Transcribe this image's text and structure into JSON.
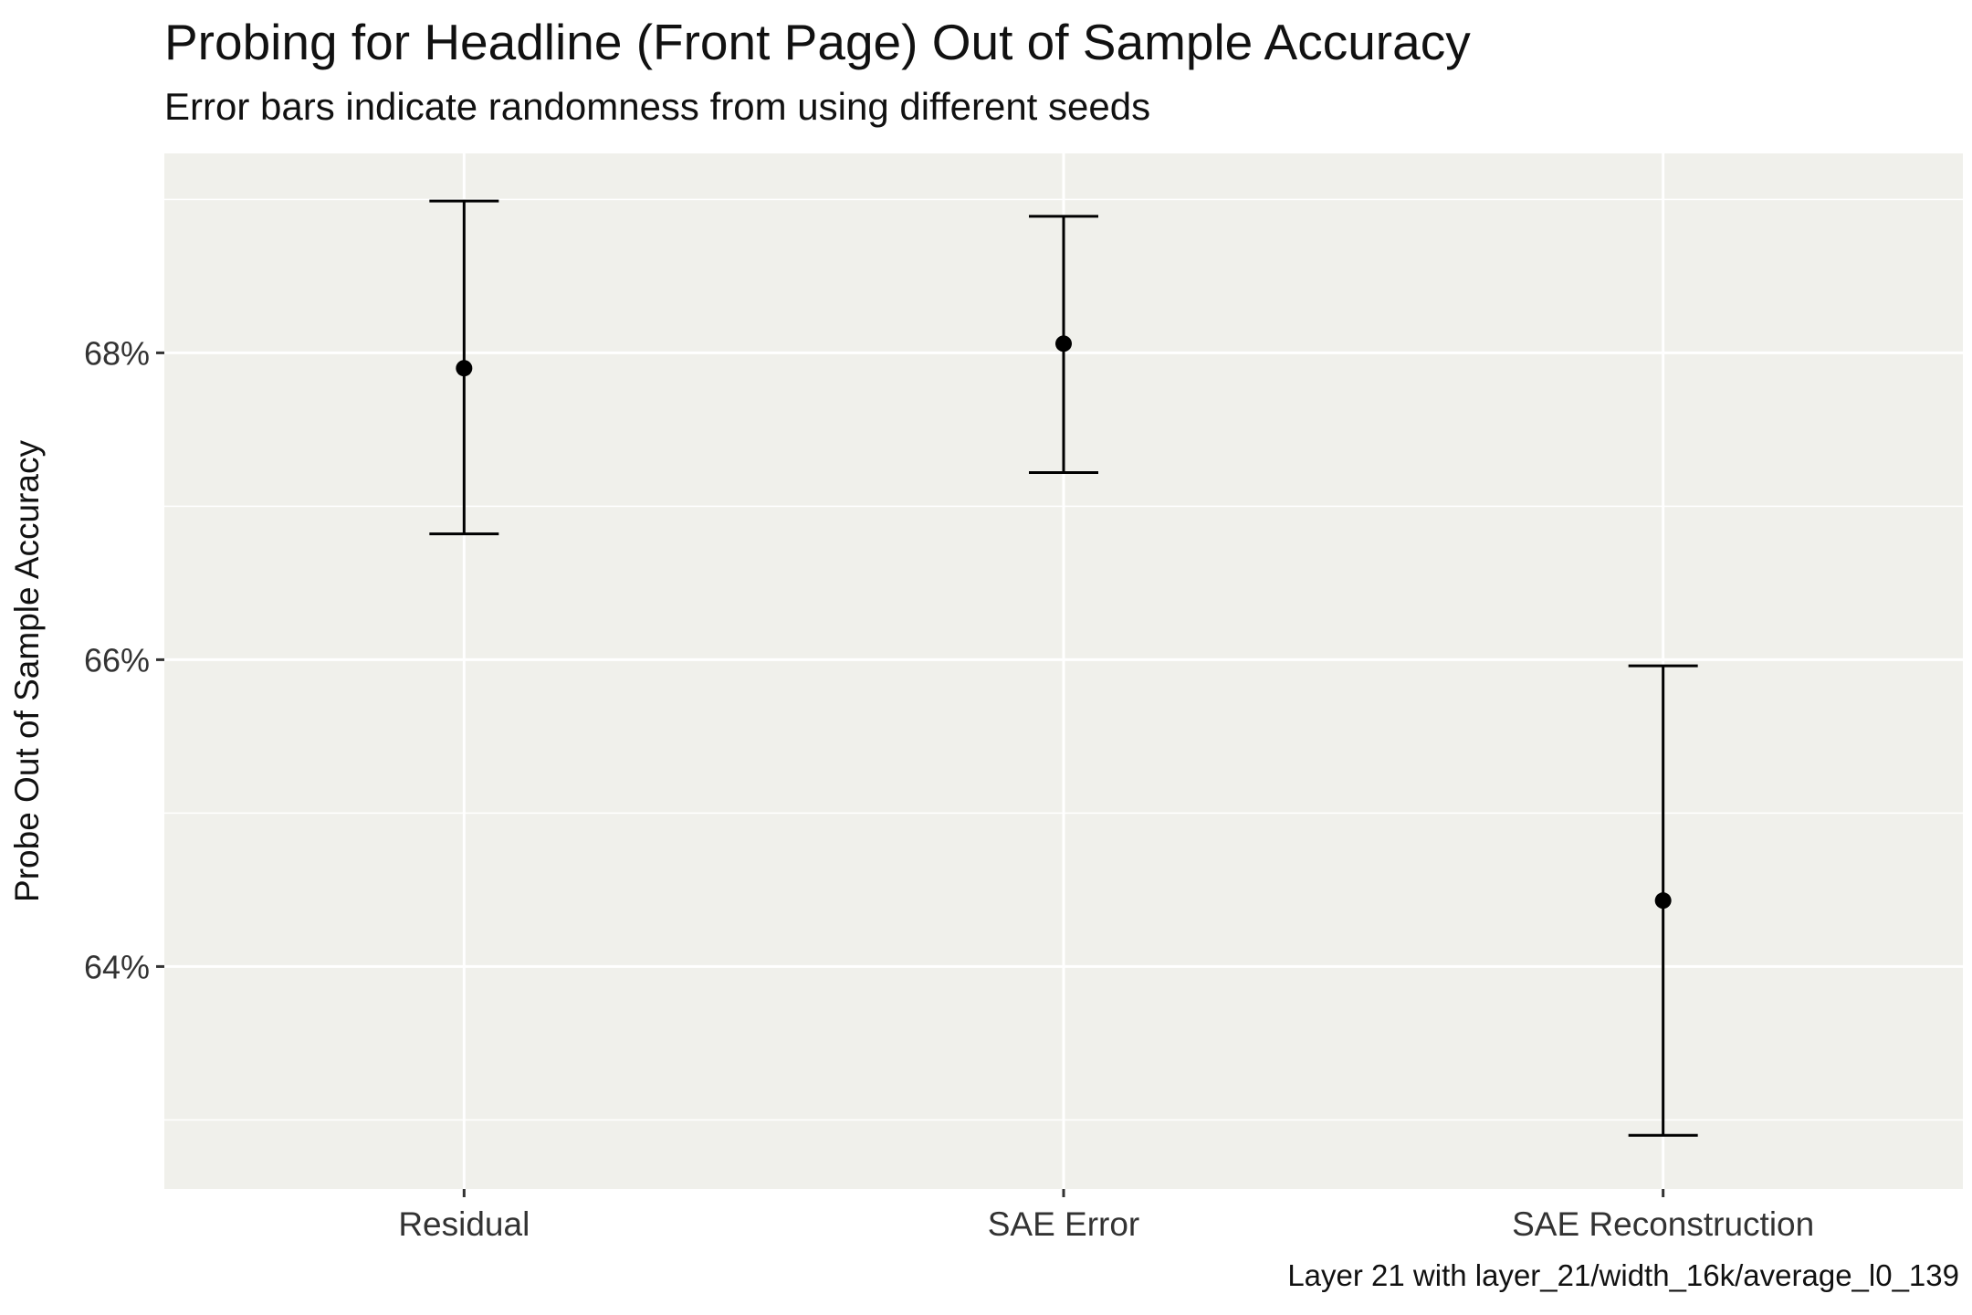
{
  "chart_data": {
    "type": "scatter",
    "title": "Probing for Headline (Front Page) Out of Sample Accuracy",
    "subtitle": "Error bars indicate randomness from using different seeds",
    "caption": "Layer 21 with layer_21/width_16k/average_l0_139",
    "xlabel": "",
    "ylabel": "Probe Out of Sample Accuracy",
    "categories": [
      "Residual",
      "SAE Error",
      "SAE Reconstruction"
    ],
    "series": [
      {
        "values": [
          67.9,
          68.06,
          64.43
        ],
        "lower": [
          66.82,
          67.22,
          62.9
        ],
        "upper": [
          68.99,
          68.89,
          65.96
        ]
      }
    ],
    "ylim": [
      62.55,
      69.3
    ],
    "yticks": [
      64,
      66,
      68
    ],
    "ytick_labels": [
      "64%",
      "66%",
      "68%"
    ],
    "grid": true,
    "colors": {
      "panel_background": "#F0F0EB",
      "grid": "#FFFFFF",
      "marks": "#000000"
    }
  }
}
